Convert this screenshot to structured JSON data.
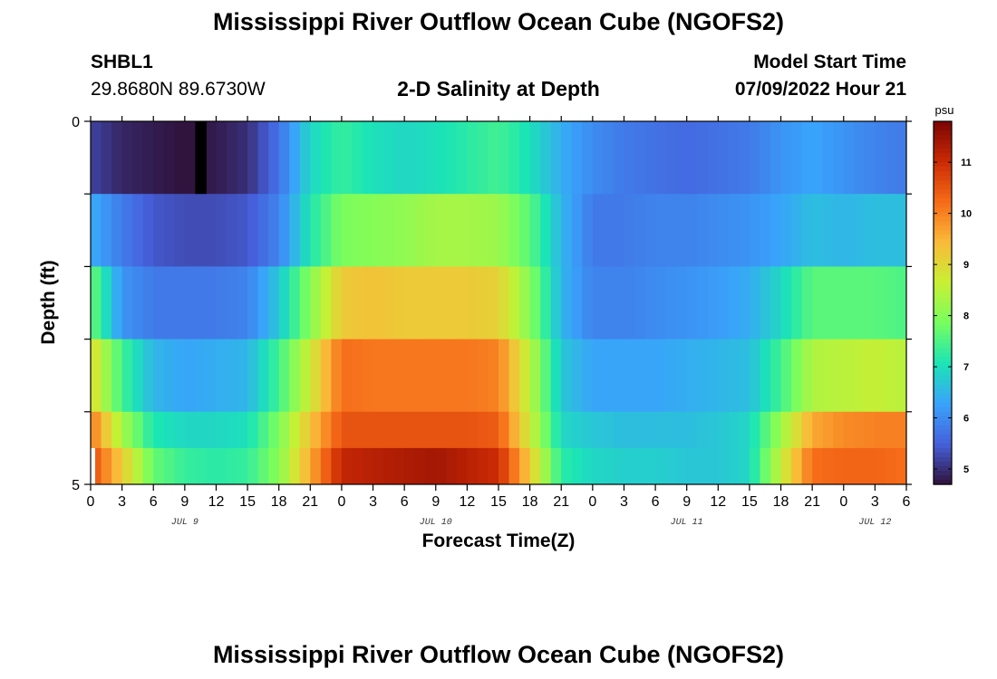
{
  "header": {
    "title": "Mississippi River Outflow Ocean Cube (NGOFS2)",
    "station_name": "SHBL1",
    "station_coords": "29.8680N  89.6730W",
    "subtitle": "2-D Salinity at Depth",
    "model_start_label": "Model Start Time",
    "model_start_value": "07/09/2022 Hour 21",
    "footer_title": "Mississippi River Outflow Ocean Cube (NGOFS2)"
  },
  "chart_data": {
    "type": "heatmap",
    "title": "2-D Salinity at Depth",
    "xlabel": "Forecast Time(Z)",
    "ylabel": "Depth (ft)",
    "x_tick_labels": [
      "0",
      "3",
      "6",
      "9",
      "12",
      "15",
      "18",
      "21",
      "0",
      "3",
      "6",
      "9",
      "12",
      "15",
      "18",
      "21",
      "0",
      "3",
      "6",
      "9",
      "12",
      "15",
      "18",
      "21",
      "0",
      "3",
      "6"
    ],
    "date_labels": [
      "JUL 9",
      "JUL 10",
      "JUL 11",
      "JUL 12"
    ],
    "y_tick_labels": [
      "0",
      "5"
    ],
    "ylim": [
      0,
      5
    ],
    "colorbar": {
      "unit": "psu",
      "ticks": [
        5,
        6,
        7,
        8,
        9,
        10,
        11
      ],
      "range": [
        4.7,
        11.8
      ]
    },
    "time_hours": [
      0,
      3,
      6,
      9,
      12,
      15,
      18,
      21,
      24,
      27,
      30,
      33,
      36,
      39,
      42,
      45,
      48,
      51,
      54,
      57,
      60,
      63,
      66,
      69,
      72,
      75,
      78
    ],
    "depth_layers_ft": [
      0.5,
      1.5,
      2.5,
      3.5,
      4.5,
      5.0
    ],
    "salinity_psu": [
      [
        5.2,
        4.9,
        4.8,
        4.7,
        4.8,
        5.0,
        5.7,
        6.9,
        7.3,
        7.0,
        6.9,
        7.0,
        7.2,
        7.4,
        7.0,
        6.4,
        6.0,
        5.8,
        5.7,
        5.6,
        5.7,
        5.8,
        6.1,
        6.3,
        6.1,
        5.9,
        5.8
      ],
      [
        6.4,
        5.8,
        5.4,
        5.3,
        5.3,
        5.4,
        5.9,
        7.1,
        7.9,
        8.0,
        8.1,
        8.3,
        8.3,
        8.2,
        7.6,
        6.5,
        5.8,
        5.8,
        5.9,
        5.9,
        6.0,
        6.1,
        6.3,
        6.6,
        6.5,
        6.6,
        6.6
      ],
      [
        7.8,
        6.1,
        5.8,
        5.8,
        5.8,
        5.9,
        6.7,
        8.0,
        9.2,
        9.3,
        9.2,
        9.2,
        9.2,
        9.1,
        8.0,
        6.5,
        5.9,
        5.9,
        6.0,
        6.1,
        6.2,
        6.4,
        6.9,
        7.6,
        7.6,
        7.6,
        7.5
      ],
      [
        9.0,
        7.4,
        6.5,
        6.3,
        6.4,
        6.5,
        7.4,
        8.7,
        10.2,
        10.1,
        10.1,
        10.1,
        10.1,
        10.0,
        8.5,
        6.7,
        6.3,
        6.3,
        6.3,
        6.4,
        6.5,
        6.6,
        7.4,
        8.4,
        8.5,
        8.6,
        8.5
      ],
      [
        10.1,
        8.3,
        7.1,
        6.9,
        6.9,
        7.0,
        7.9,
        9.3,
        10.5,
        10.5,
        10.5,
        10.5,
        10.5,
        10.4,
        8.7,
        6.9,
        6.7,
        6.6,
        6.6,
        6.6,
        6.7,
        6.9,
        8.2,
        9.6,
        9.9,
        10.0,
        10.0
      ],
      [
        10.6,
        9.2,
        7.7,
        7.3,
        7.2,
        7.3,
        8.0,
        9.6,
        11.1,
        11.2,
        11.3,
        11.4,
        11.2,
        11.0,
        9.2,
        7.2,
        6.9,
        6.8,
        6.8,
        6.7,
        6.7,
        6.9,
        8.6,
        10.2,
        10.3,
        10.3,
        10.2
      ]
    ],
    "missing_cells": [
      {
        "depth_layer": 0,
        "time_hour": 10
      },
      {
        "depth_layer": 5,
        "time_hour": 0
      }
    ],
    "colors": {
      "stops": [
        "#30123b",
        "#4660dc",
        "#39a3fb",
        "#1be5b5",
        "#77fe5f",
        "#c9ef34",
        "#faba39",
        "#f66b19",
        "#cb2a04",
        "#7a0403"
      ]
    }
  }
}
